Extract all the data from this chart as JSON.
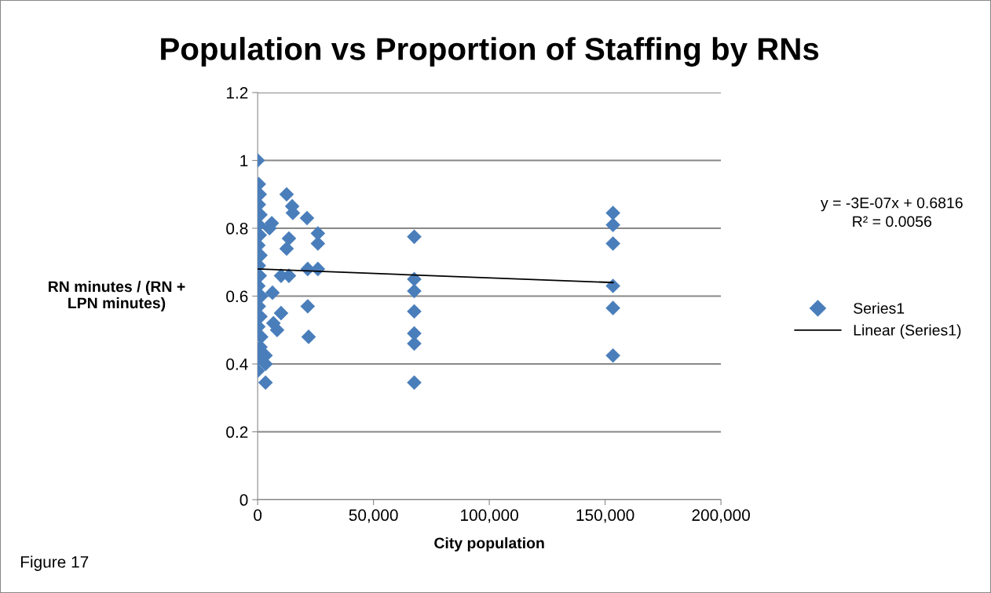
{
  "chart_data": {
    "type": "scatter",
    "title": "Population vs Proportion of Staffing by RNs",
    "xlabel": "City population",
    "ylabel": "RN minutes / (RN +\nLPN minutes)",
    "xlim": [
      0,
      200000
    ],
    "xticks": [
      0,
      {
        "value": 50000,
        "label": "50,000"
      },
      {
        "value": 100000,
        "label": "100,000"
      },
      {
        "value": 150000,
        "label": "150,000"
      },
      {
        "value": 200000,
        "label": "200,000"
      }
    ],
    "ylim": [
      0,
      1.2
    ],
    "yticks": [
      0,
      0.2,
      0.4,
      0.6,
      0.8,
      1,
      1.2
    ],
    "grid": "y",
    "legend": "right",
    "annotations": [
      "y = -3E-07x + 0.6816\nR² = 0.0056",
      "Figure 17"
    ],
    "series": [
      {
        "name": "Series1",
        "marker": "diamond",
        "color": "#4a7ebb",
        "x": [
          0,
          500,
          900,
          500,
          1200,
          500,
          900,
          300,
          1200,
          500,
          900,
          300,
          1500,
          500,
          1200,
          300,
          1500,
          1200,
          300,
          0,
          3400,
          3400,
          3400,
          10100,
          13500,
          21600,
          26000,
          6400,
          21600,
          10100,
          6800,
          8400,
          22000,
          12500,
          14900,
          15200,
          21300,
          6100,
          5100,
          26000,
          26000,
          13500,
          12500,
          67600,
          67600,
          67600,
          67600,
          67600,
          67600,
          67600,
          153400,
          153400,
          153400,
          153400,
          153400,
          153400
        ],
        "values": [
          1.0,
          0.93,
          0.9,
          0.87,
          0.84,
          0.81,
          0.78,
          0.75,
          0.72,
          0.69,
          0.66,
          0.63,
          0.6,
          0.57,
          0.54,
          0.51,
          0.48,
          0.45,
          0.42,
          0.38,
          0.425,
          0.4,
          0.345,
          0.66,
          0.66,
          0.68,
          0.68,
          0.61,
          0.57,
          0.55,
          0.52,
          0.5,
          0.48,
          0.9,
          0.865,
          0.845,
          0.83,
          0.815,
          0.8,
          0.785,
          0.755,
          0.77,
          0.74,
          0.775,
          0.65,
          0.615,
          0.555,
          0.49,
          0.46,
          0.345,
          0.845,
          0.81,
          0.755,
          0.63,
          0.565,
          0.425
        ]
      },
      {
        "name": "Linear (Series1)",
        "type": "line",
        "marker": "none",
        "line_style": "solid",
        "color": "#000000",
        "x": [
          0,
          153400
        ],
        "values": [
          0.68,
          0.64
        ]
      }
    ]
  }
}
